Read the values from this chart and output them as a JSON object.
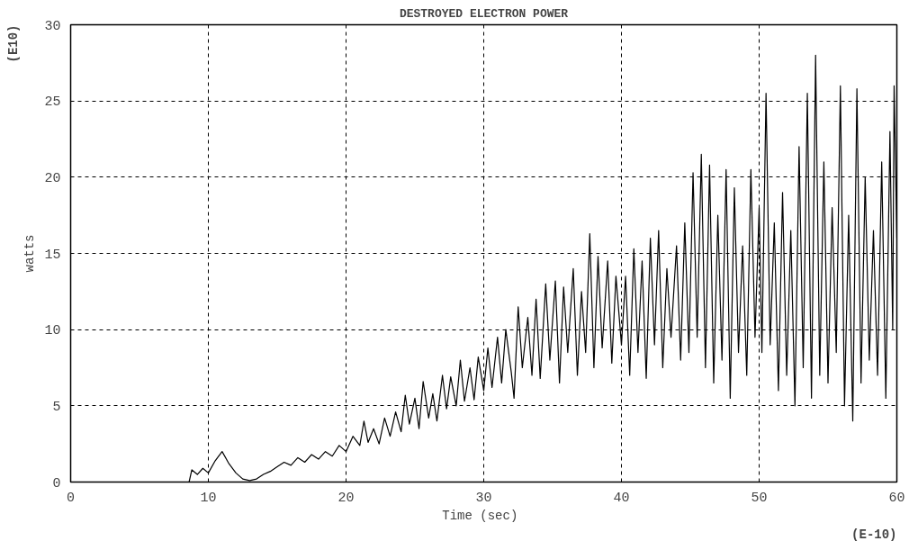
{
  "chart_data": {
    "type": "line",
    "title": "DESTROYED ELECTRON POWER",
    "xlabel": "Time  (sec)",
    "ylabel": "watts",
    "annotations": [
      "(E10)",
      "(E-10)"
    ],
    "xlim": [
      0,
      60
    ],
    "xticks": [
      0,
      10,
      20,
      30,
      40,
      50,
      60
    ],
    "ylim": [
      0,
      30
    ],
    "yticks": [
      0,
      5,
      10,
      15,
      20,
      25,
      30
    ],
    "grid": true,
    "line_style": "solid",
    "marker": "none",
    "series": [
      {
        "color": "#000000",
        "x": [
          8.6,
          8.8,
          9.2,
          9.6,
          10.0,
          10.5,
          11.0,
          11.5,
          12.0,
          12.5,
          13.0,
          13.5,
          14.0,
          14.5,
          15.0,
          15.5,
          16.0,
          16.5,
          17.0,
          17.5,
          18.0,
          18.5,
          19.0,
          19.5,
          20.0,
          20.5,
          21.0,
          21.3,
          21.6,
          22.0,
          22.4,
          22.8,
          23.2,
          23.6,
          24.0,
          24.3,
          24.6,
          25.0,
          25.3,
          25.6,
          26.0,
          26.3,
          26.6,
          27.0,
          27.3,
          27.6,
          28.0,
          28.3,
          28.6,
          29.0,
          29.3,
          29.6,
          30.0,
          30.3,
          30.6,
          31.0,
          31.3,
          31.6,
          32.0,
          32.2,
          32.5,
          32.8,
          33.2,
          33.5,
          33.8,
          34.1,
          34.5,
          34.8,
          35.2,
          35.5,
          35.8,
          36.1,
          36.5,
          36.8,
          37.1,
          37.4,
          37.7,
          38.0,
          38.3,
          38.6,
          39.0,
          39.3,
          39.6,
          40.0,
          40.3,
          40.6,
          40.9,
          41.2,
          41.5,
          41.8,
          42.1,
          42.4,
          42.7,
          43.0,
          43.3,
          43.6,
          44.0,
          44.3,
          44.6,
          44.9,
          45.2,
          45.5,
          45.8,
          46.1,
          46.4,
          46.7,
          47.0,
          47.3,
          47.6,
          47.9,
          48.2,
          48.5,
          48.8,
          49.1,
          49.4,
          49.7,
          50.0,
          50.2,
          50.5,
          50.8,
          51.1,
          51.4,
          51.7,
          52.0,
          52.3,
          52.6,
          52.9,
          53.2,
          53.5,
          53.8,
          54.1,
          54.4,
          54.7,
          55.0,
          55.3,
          55.6,
          55.9,
          56.2,
          56.5,
          56.8,
          57.1,
          57.4,
          57.7,
          58.0,
          58.3,
          58.6,
          58.9,
          59.2,
          59.5,
          59.7,
          59.8,
          60.0
        ],
        "values": [
          0,
          0.8,
          0.5,
          0.9,
          0.6,
          1.4,
          2.0,
          1.2,
          0.6,
          0.2,
          0.1,
          0.2,
          0.5,
          0.7,
          1.0,
          1.3,
          1.1,
          1.6,
          1.3,
          1.8,
          1.5,
          2.0,
          1.7,
          2.4,
          2.0,
          3.0,
          2.4,
          4.0,
          2.6,
          3.5,
          2.5,
          4.2,
          3.0,
          4.6,
          3.3,
          5.7,
          3.8,
          5.5,
          3.5,
          6.6,
          4.2,
          5.8,
          4.0,
          7.0,
          4.8,
          6.9,
          5.0,
          8.0,
          5.3,
          7.5,
          5.4,
          8.2,
          6.0,
          8.8,
          6.2,
          9.5,
          6.5,
          10.0,
          7.2,
          5.5,
          11.5,
          7.5,
          10.8,
          7.0,
          12.0,
          6.8,
          13.0,
          8.0,
          13.2,
          6.5,
          12.8,
          8.5,
          14.0,
          7.0,
          12.5,
          8.5,
          16.3,
          7.5,
          14.8,
          8.8,
          14.5,
          7.8,
          13.5,
          9.0,
          13.5,
          7.0,
          15.3,
          8.5,
          14.5,
          6.8,
          16.0,
          9.0,
          16.5,
          7.5,
          14.0,
          9.5,
          15.5,
          8.0,
          17.0,
          8.5,
          20.3,
          9.5,
          21.5,
          7.5,
          20.8,
          6.5,
          17.5,
          8.0,
          20.5,
          5.5,
          19.3,
          8.5,
          15.5,
          7.0,
          20.5,
          9.5,
          18.0,
          8.5,
          25.5,
          9.0,
          17.0,
          6.0,
          19.0,
          7.0,
          16.5,
          5.0,
          22.0,
          7.5,
          25.5,
          5.5,
          28.0,
          7.0,
          21.0,
          6.5,
          18.0,
          8.5,
          26.0,
          5.0,
          17.5,
          4.0,
          25.8,
          6.5,
          20.0,
          8.0,
          16.5,
          7.0,
          21.0,
          5.5,
          23.0,
          10.0,
          26.0,
          16.0
        ]
      }
    ]
  }
}
